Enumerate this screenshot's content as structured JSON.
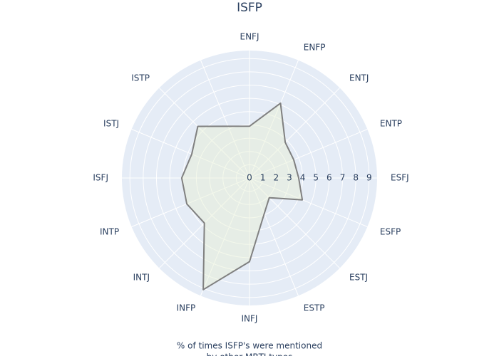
{
  "chart_data": {
    "type": "radar",
    "title": "ISFP",
    "annotation": [
      "% of times ISFP's were mentioned",
      "by other MBTI types"
    ],
    "categories": [
      "ENFJ",
      "ENFP",
      "ENTJ",
      "ENTP",
      "ESFJ",
      "ESFP",
      "ESTJ",
      "ESTP",
      "INFJ",
      "INFP",
      "INTJ",
      "INTP",
      "ISFJ",
      "ISTJ",
      "ISTP"
    ],
    "values": [
      3.9,
      6.1,
      3.8,
      3.6,
      3.7,
      4.3,
      2.1,
      2.9,
      6.3,
      9.1,
      4.8,
      5.1,
      5.1,
      4.7,
      5.5
    ],
    "color": "#808080",
    "fill_color": "rgba(230,240,210,0.45)",
    "ylim": [
      0,
      9.6
    ],
    "yticks": [
      0,
      1,
      2,
      3,
      4,
      5,
      6,
      7,
      8,
      9
    ],
    "grid": true
  }
}
